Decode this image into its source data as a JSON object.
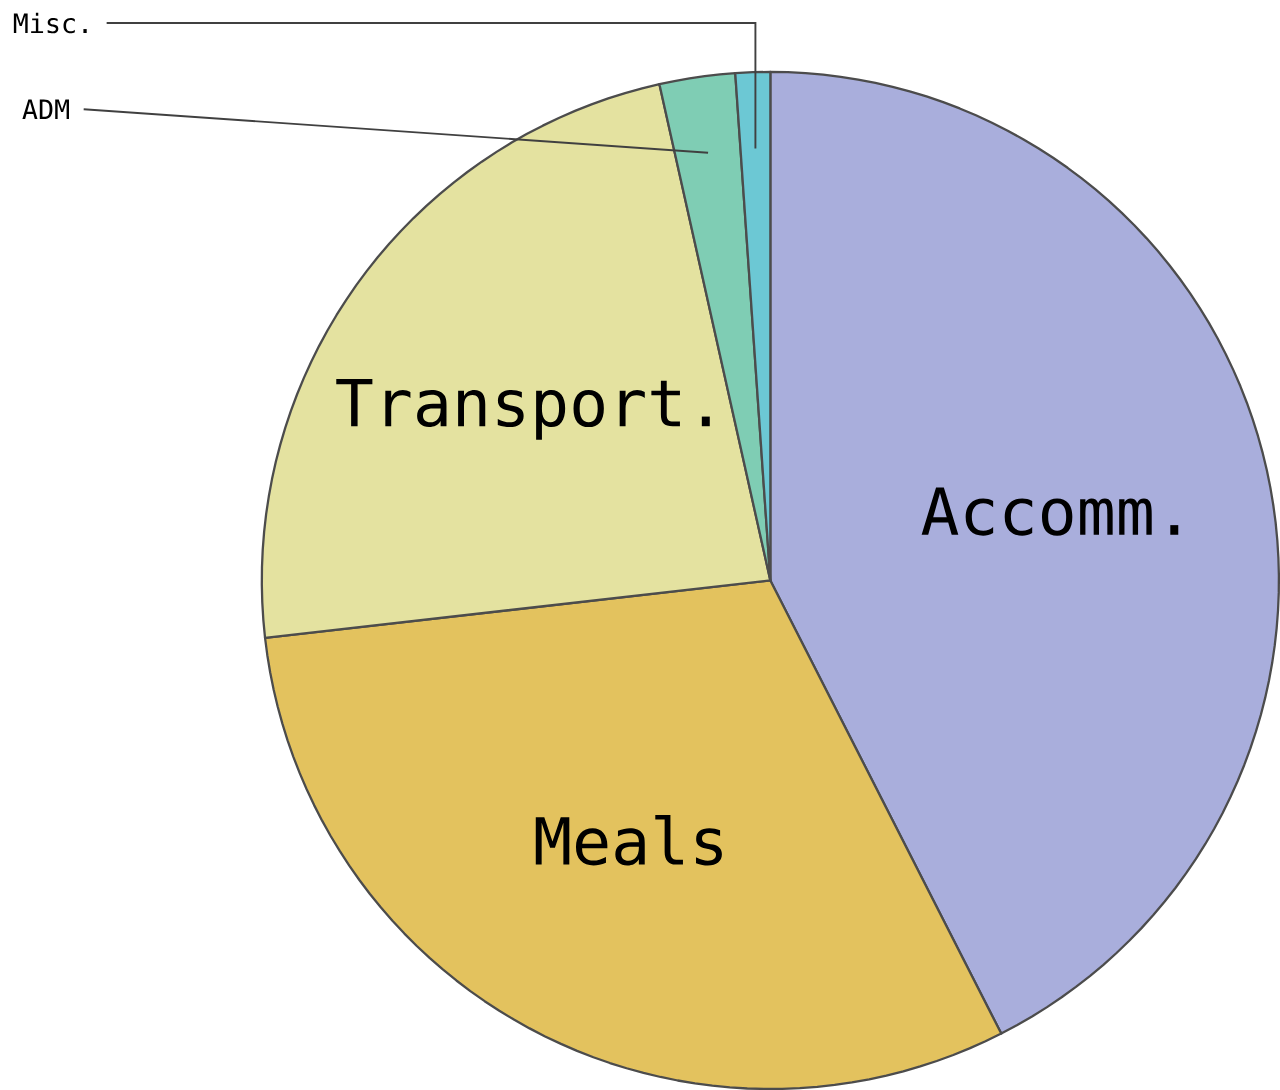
{
  "chart_data": {
    "type": "pie",
    "categories": [
      "Accomm.",
      "Meals",
      "Transport.",
      "ADM",
      "Misc."
    ],
    "values": [
      42.5,
      30.7,
      23.3,
      2.4,
      1.1
    ],
    "colors": [
      "#a9aedc",
      "#e3c25e",
      "#e4e2a0",
      "#7fcdb4",
      "#6cc8d4"
    ]
  }
}
